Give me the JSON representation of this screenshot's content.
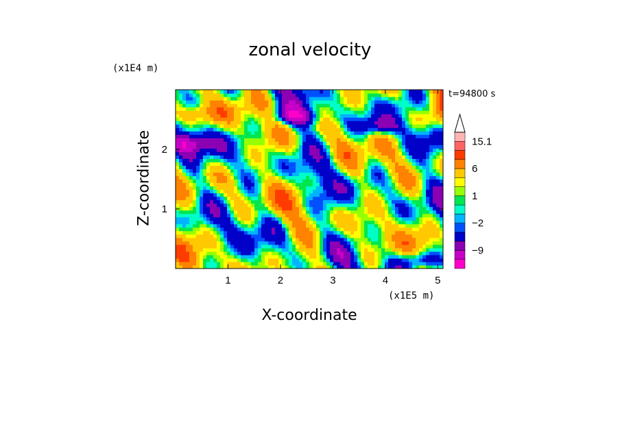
{
  "chart_data": {
    "type": "heatmap",
    "title": "zonal velocity",
    "xlabel": "X-coordinate",
    "ylabel": "Z-coordinate",
    "x_unit": "(x1E5 m)",
    "y_unit": "(x1E4 m)",
    "time_label": "t=94800 s",
    "x_ticks": [
      "1",
      "2",
      "3",
      "4",
      "5"
    ],
    "y_ticks": [
      "1",
      "2"
    ],
    "xlim": [
      0,
      5.1
    ],
    "ylim": [
      0,
      3.0
    ],
    "colorbar": {
      "levels": [
        -15,
        -12,
        -9,
        -6,
        -3,
        -2,
        -1,
        0,
        1,
        2,
        3,
        6,
        9,
        12,
        15.1
      ],
      "colors": [
        "#ff00c8",
        "#c800c8",
        "#8c00b4",
        "#0000c8",
        "#0050ff",
        "#00b4ff",
        "#00ffc8",
        "#00e650",
        "#96ff00",
        "#ffff00",
        "#ffc800",
        "#ff8200",
        "#ff3c00",
        "#ff6464",
        "#ffb4b4"
      ],
      "labels": [
        "15.1",
        "6",
        "1",
        "-2",
        "-9"
      ],
      "label_values": [
        15.1,
        6,
        1,
        -2,
        -9
      ]
    }
  }
}
